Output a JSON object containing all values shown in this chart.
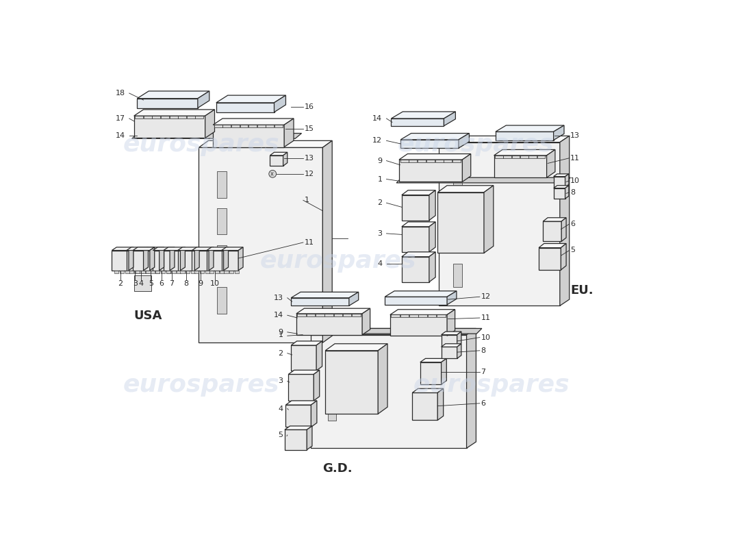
{
  "bg_color": "#ffffff",
  "lc": "#2a2a2a",
  "fc_panel": "#f2f2f2",
  "fc_box": "#e8e8e8",
  "fc_box_top": "#f8f8f8",
  "fc_box_side": "#d0d0d0",
  "fc_flat": "#e4eaf0",
  "fc_flat_top": "#f0f4f8",
  "fc_flat_side": "#c8d0d8",
  "wm_color": "#c8d4e8",
  "wm_text": "eurospares",
  "wm_alpha": 0.45,
  "lw_main": 0.9,
  "lw_line": 0.6,
  "fs_label": 8,
  "fs_section": 13,
  "usa_label": "USA",
  "eu_label": "EU.",
  "gd_label": "G.D."
}
